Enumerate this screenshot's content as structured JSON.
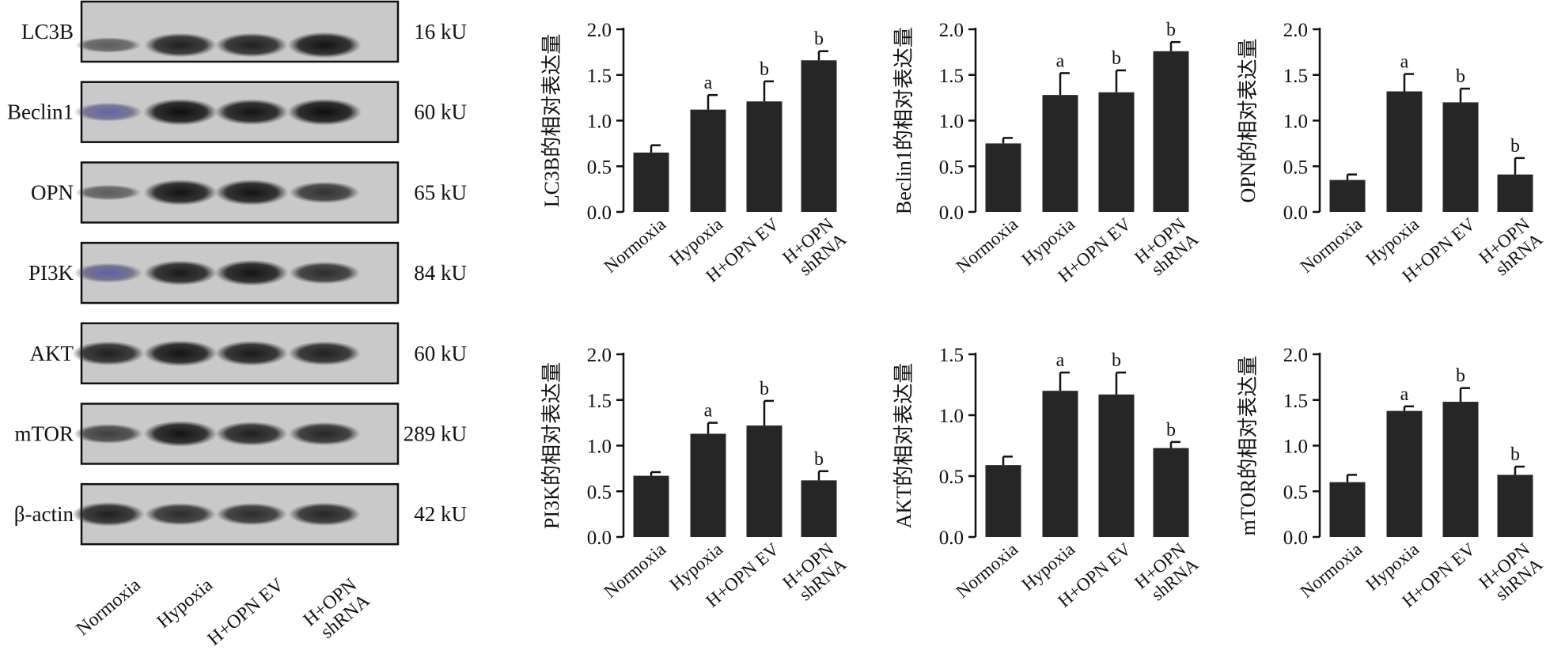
{
  "blot": {
    "lanes": [
      "Normoxia",
      "Hypoxia",
      "H+OPN EV",
      "H+OPN\nshRNA"
    ],
    "rows": [
      {
        "protein": "LC3B",
        "size": "16 kU",
        "intensity": [
          0.35,
          0.85,
          0.85,
          0.95
        ],
        "tint": [
          false,
          false,
          false,
          false
        ]
      },
      {
        "protein": "Beclin1",
        "size": "60 kU",
        "intensity": [
          0.55,
          1.0,
          0.95,
          1.0
        ],
        "tint": [
          true,
          false,
          false,
          false
        ]
      },
      {
        "protein": "OPN",
        "size": "65 kU",
        "intensity": [
          0.35,
          0.95,
          0.95,
          0.7
        ],
        "tint": [
          false,
          false,
          false,
          false
        ]
      },
      {
        "protein": "PI3K",
        "size": "84 kU",
        "intensity": [
          0.6,
          0.9,
          0.95,
          0.75
        ],
        "tint": [
          true,
          false,
          false,
          false
        ]
      },
      {
        "protein": "AKT",
        "size": "60 kU",
        "intensity": [
          0.85,
          0.95,
          0.9,
          0.85
        ],
        "tint": [
          false,
          false,
          false,
          false
        ]
      },
      {
        "protein": "mTOR",
        "size": "289 kU",
        "intensity": [
          0.6,
          0.95,
          0.85,
          0.8
        ],
        "tint": [
          false,
          false,
          false,
          false
        ]
      },
      {
        "protein": "β-actin",
        "size": "42 kU",
        "intensity": [
          0.85,
          0.75,
          0.75,
          0.8
        ],
        "tint": [
          false,
          false,
          false,
          false
        ]
      }
    ]
  },
  "chart_data": [
    {
      "type": "bar",
      "ylabel": "LC3B的相对表达量",
      "categories": [
        "Normoxia",
        "Hypoxia",
        "H+OPN EV",
        "H+OPN\nshRNA"
      ],
      "values": [
        0.65,
        1.12,
        1.21,
        1.66
      ],
      "errors": [
        0.08,
        0.16,
        0.22,
        0.1
      ],
      "significance": [
        "",
        "a",
        "b",
        "b"
      ],
      "ylim": [
        0,
        2.0
      ],
      "yticks": [
        "0.0",
        "0.5",
        "1.0",
        "1.5",
        "2.0"
      ],
      "color": "#262626"
    },
    {
      "type": "bar",
      "ylabel": "Beclin1的相对表达量",
      "categories": [
        "Normoxia",
        "Hypoxia",
        "H+OPN EV",
        "H+OPN\nshRNA"
      ],
      "values": [
        0.75,
        1.28,
        1.31,
        1.76
      ],
      "errors": [
        0.06,
        0.24,
        0.24,
        0.1
      ],
      "significance": [
        "",
        "a",
        "b",
        "b"
      ],
      "ylim": [
        0,
        2.0
      ],
      "yticks": [
        "0.0",
        "0.5",
        "1.0",
        "1.5",
        "2.0"
      ],
      "color": "#262626"
    },
    {
      "type": "bar",
      "ylabel": "OPN的相对表达量",
      "categories": [
        "Normoxia",
        "Hypoxia",
        "H+OPN EV",
        "H+OPN\nshRNA"
      ],
      "values": [
        0.35,
        1.32,
        1.2,
        0.41
      ],
      "errors": [
        0.06,
        0.19,
        0.15,
        0.18
      ],
      "significance": [
        "",
        "a",
        "b",
        "b"
      ],
      "ylim": [
        0,
        2.0
      ],
      "yticks": [
        "0.0",
        "0.5",
        "1.0",
        "1.5",
        "2.0"
      ],
      "color": "#262626"
    },
    {
      "type": "bar",
      "ylabel": "PI3K的相对表达量",
      "categories": [
        "Normoxia",
        "Hypoxia",
        "H+OPN EV",
        "H+OPN\nshRNA"
      ],
      "values": [
        0.67,
        1.13,
        1.22,
        0.62
      ],
      "errors": [
        0.04,
        0.12,
        0.27,
        0.1
      ],
      "significance": [
        "",
        "a",
        "b",
        "b"
      ],
      "ylim": [
        0,
        2.0
      ],
      "yticks": [
        "0.0",
        "0.5",
        "1.0",
        "1.5",
        "2.0"
      ],
      "color": "#262626"
    },
    {
      "type": "bar",
      "ylabel": "AKT的相对表达量",
      "categories": [
        "Normoxia",
        "Hypoxia",
        "H+OPN EV",
        "H+OPN\nshRNA"
      ],
      "values": [
        0.59,
        1.2,
        1.17,
        0.73
      ],
      "errors": [
        0.07,
        0.15,
        0.18,
        0.05
      ],
      "significance": [
        "",
        "a",
        "b",
        "b"
      ],
      "ylim": [
        0,
        1.5
      ],
      "yticks": [
        "0.0",
        "0.5",
        "1.0",
        "1.5"
      ],
      "color": "#262626"
    },
    {
      "type": "bar",
      "ylabel": "mTOR的相对表达量",
      "categories": [
        "Normoxia",
        "Hypoxia",
        "H+OPN EV",
        "H+OPN\nshRNA"
      ],
      "values": [
        0.6,
        1.38,
        1.48,
        0.68
      ],
      "errors": [
        0.08,
        0.05,
        0.15,
        0.09
      ],
      "significance": [
        "",
        "a",
        "b",
        "b"
      ],
      "ylim": [
        0,
        2.0
      ],
      "yticks": [
        "0.0",
        "0.5",
        "1.0",
        "1.5",
        "2.0"
      ],
      "color": "#262626"
    }
  ]
}
